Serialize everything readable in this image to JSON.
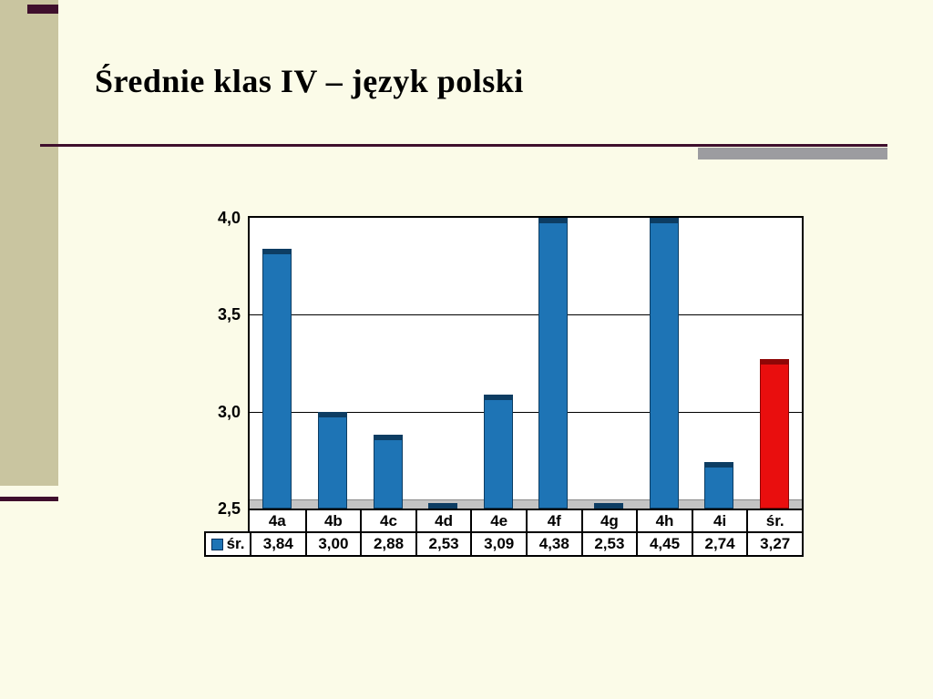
{
  "slide": {
    "title": "Średnie klas IV – język polski"
  },
  "theme": {
    "background": "#FBFBE8",
    "accent_bar": "#C9C5A0",
    "rule": "#3F0F2D",
    "rule_accent": "#9C9CA0",
    "title_color": "#000000"
  },
  "chart_data": {
    "type": "bar",
    "title": "Średnie klas IV – język polski",
    "categories": [
      "4a",
      "4b",
      "4c",
      "4d",
      "4e",
      "4f",
      "4g",
      "4h",
      "4i",
      "śr."
    ],
    "series": [
      {
        "name": "śr.",
        "values": [
          3.84,
          3.0,
          2.88,
          2.53,
          3.09,
          4.38,
          2.53,
          4.45,
          2.74,
          3.27
        ]
      }
    ],
    "value_labels": [
      "3,84",
      "3,00",
      "2,88",
      "2,53",
      "3,09",
      "4,38",
      "2,53",
      "4,45",
      "2,74",
      "3,27"
    ],
    "legend_label": "śr.",
    "xlabel": "",
    "ylabel": "",
    "ylim": [
      2.5,
      4.0
    ],
    "yticks": [
      2.5,
      3.0,
      3.5,
      4.0
    ],
    "ytick_labels": [
      "2,5",
      "3,0",
      "3,5",
      "4,0"
    ],
    "grid": true,
    "legend_position": "bottom-table-left",
    "colors": {
      "bar": "#1E74B5",
      "bar_dark": "#0D3D63",
      "highlight": "#E90E0E",
      "highlight_dark": "#8F0606",
      "highlight_index": 9,
      "plot_bg": "#FFFFFF",
      "floor": "#C4C4C4"
    }
  }
}
